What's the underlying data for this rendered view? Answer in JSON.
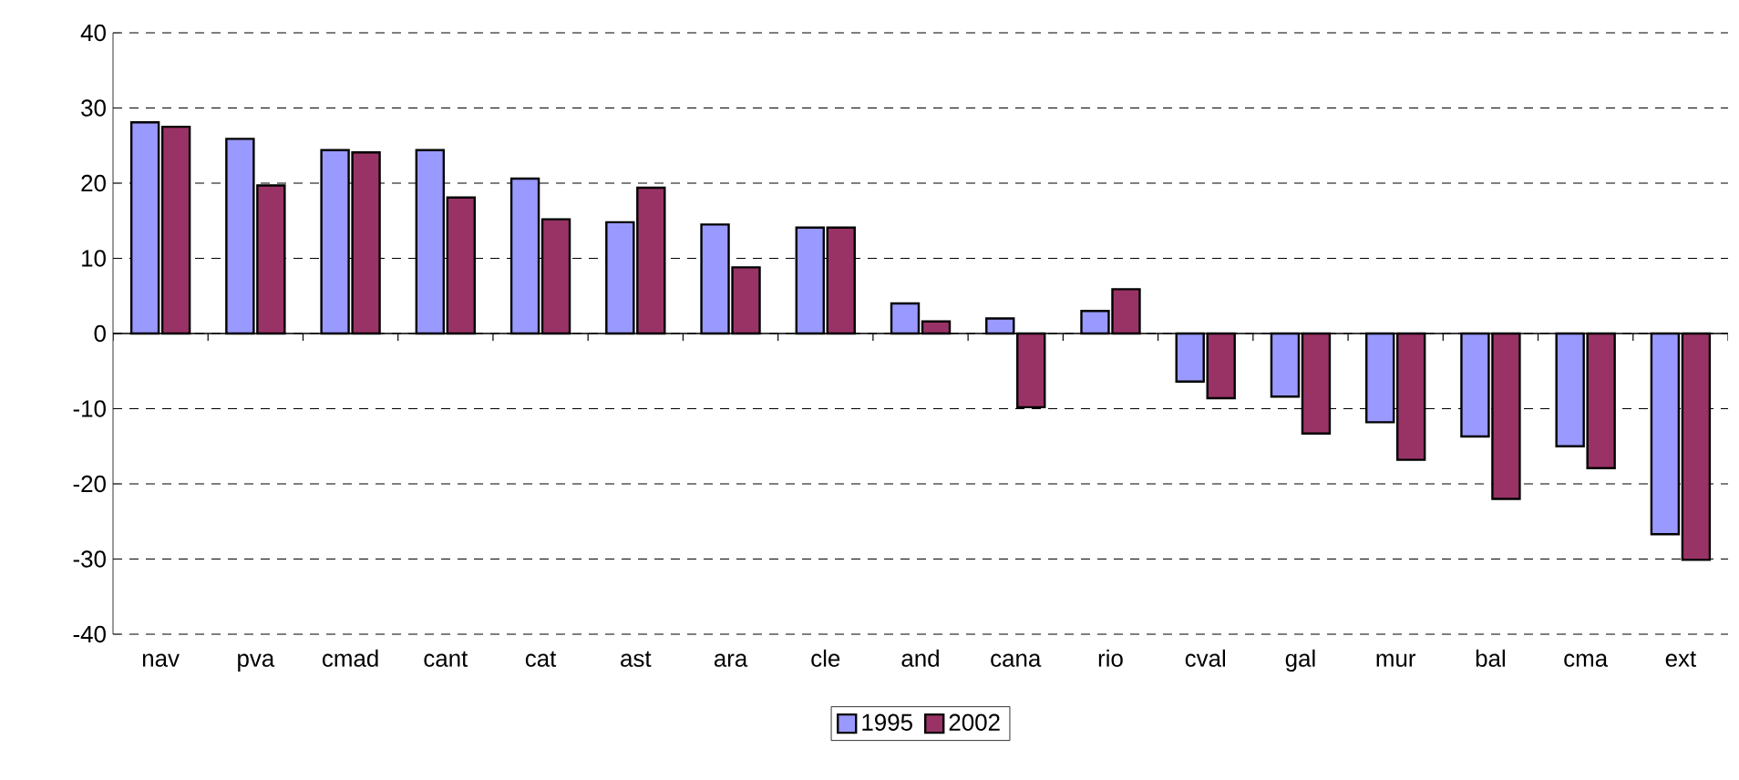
{
  "chart_data": {
    "type": "bar",
    "categories": [
      "nav",
      "pva",
      "cmad",
      "cant",
      "cat",
      "ast",
      "ara",
      "cle",
      "and",
      "cana",
      "rio",
      "cval",
      "gal",
      "mur",
      "bal",
      "cma",
      "ext"
    ],
    "series": [
      {
        "name": "1995",
        "color": "#9999ff",
        "values": [
          28.1,
          25.9,
          24.4,
          24.4,
          20.6,
          14.8,
          14.5,
          14.1,
          4.0,
          2.0,
          3.0,
          -6.4,
          -8.4,
          -11.8,
          -13.7,
          -15.0,
          -26.7
        ]
      },
      {
        "name": "2002",
        "color": "#993366",
        "values": [
          27.5,
          19.7,
          24.1,
          18.1,
          15.2,
          19.4,
          8.8,
          14.1,
          1.6,
          -9.8,
          5.9,
          -8.6,
          -13.3,
          -16.8,
          -22.0,
          -17.9,
          -30.1
        ]
      }
    ],
    "ylim": [
      -40,
      40
    ],
    "yticks": [
      -40,
      -30,
      -20,
      -10,
      0,
      10,
      20,
      30,
      40
    ],
    "grid": "y",
    "legend": "bottom"
  }
}
